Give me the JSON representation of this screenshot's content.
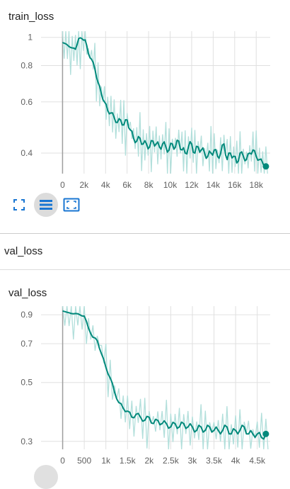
{
  "colors": {
    "line": "#00897b",
    "raw": "#b2dfdb",
    "grid": "#e0e0e0",
    "origin": "#9e9e9e",
    "icon": "#1976d2"
  },
  "train_card": {
    "title": "train_loss"
  },
  "toolbar": {
    "icons": [
      "fit-domain-icon",
      "toggle-log-scale-icon",
      "expand-icon"
    ]
  },
  "val_section": {
    "label": "val_loss"
  },
  "val_card": {
    "title": "val_loss"
  },
  "chart_data": [
    {
      "type": "line",
      "title": "train_loss",
      "xlim": [
        -2000,
        19300
      ],
      "ylim": [
        0.34,
        1.05
      ],
      "scale_y": "log",
      "y_ticks": [
        {
          "v": 1,
          "label": "1"
        },
        {
          "v": 0.8,
          "label": "0.8"
        },
        {
          "v": 0.6,
          "label": "0.6"
        },
        {
          "v": 0.4,
          "label": "0.4"
        }
      ],
      "x_ticks": [
        {
          "v": 0,
          "label": "0"
        },
        {
          "v": 2000,
          "label": "2k"
        },
        {
          "v": 4000,
          "label": "4k"
        },
        {
          "v": 6000,
          "label": "6k"
        },
        {
          "v": 8000,
          "label": "8k"
        },
        {
          "v": 10000,
          "label": "10k"
        },
        {
          "v": 12000,
          "label": "12k"
        },
        {
          "v": 14000,
          "label": "14k"
        },
        {
          "v": 16000,
          "label": "16k"
        },
        {
          "v": 18000,
          "label": "18k"
        }
      ],
      "grid": true,
      "series": [
        {
          "x": [
            0,
            300,
            600,
            900,
            1200,
            1500,
            1800,
            2100,
            2400,
            2700,
            3000,
            3300,
            3600,
            3900,
            4200,
            4500,
            4800,
            5100,
            5400,
            5700,
            6000,
            6300,
            6600,
            6900,
            7200,
            7500,
            7800,
            8100,
            8400,
            8700,
            9000,
            9300,
            9600,
            9900,
            10200,
            10500,
            10800,
            11100,
            11400,
            11700,
            12000,
            12300,
            12600,
            12900,
            13200,
            13500,
            13800,
            14100,
            14400,
            14700,
            15000,
            15300,
            15600,
            15900,
            16200,
            16500,
            16800,
            17100,
            17400,
            17700,
            18000,
            18300,
            18600,
            18900
          ],
          "y": [
            0.96,
            0.95,
            0.93,
            0.92,
            0.91,
            0.99,
            0.99,
            0.98,
            0.88,
            0.84,
            0.78,
            0.7,
            0.64,
            0.6,
            0.56,
            0.55,
            0.53,
            0.51,
            0.52,
            0.5,
            0.52,
            0.48,
            0.45,
            0.44,
            0.45,
            0.43,
            0.43,
            0.42,
            0.44,
            0.43,
            0.42,
            0.43,
            0.42,
            0.41,
            0.43,
            0.42,
            0.44,
            0.41,
            0.4,
            0.42,
            0.43,
            0.4,
            0.42,
            0.41,
            0.4,
            0.39,
            0.4,
            0.41,
            0.39,
            0.4,
            0.43,
            0.38,
            0.4,
            0.39,
            0.37,
            0.4,
            0.39,
            0.38,
            0.4,
            0.41,
            0.39,
            0.38,
            0.37,
            0.36
          ]
        }
      ]
    },
    {
      "type": "line",
      "title": "val_loss",
      "xlim": [
        -500,
        4800
      ],
      "ylim": [
        0.28,
        0.97
      ],
      "scale_y": "log",
      "y_ticks": [
        {
          "v": 0.9,
          "label": "0.9"
        },
        {
          "v": 0.7,
          "label": "0.7"
        },
        {
          "v": 0.5,
          "label": "0.5"
        },
        {
          "v": 0.3,
          "label": "0.3"
        }
      ],
      "x_ticks": [
        {
          "v": 0,
          "label": "0"
        },
        {
          "v": 500,
          "label": "500"
        },
        {
          "v": 1000,
          "label": "1k"
        },
        {
          "v": 1500,
          "label": "1.5k"
        },
        {
          "v": 2000,
          "label": "2k"
        },
        {
          "v": 2500,
          "label": "2.5k"
        },
        {
          "v": 3000,
          "label": "3k"
        },
        {
          "v": 3500,
          "label": "3.5k"
        },
        {
          "v": 4000,
          "label": "4k"
        },
        {
          "v": 4500,
          "label": "4.5k"
        }
      ],
      "grid": true,
      "series": [
        {
          "x": [
            0,
            100,
            200,
            300,
            400,
            500,
            600,
            700,
            800,
            900,
            1000,
            1100,
            1200,
            1300,
            1400,
            1500,
            1600,
            1700,
            1800,
            1900,
            2000,
            2100,
            2200,
            2300,
            2400,
            2500,
            2600,
            2700,
            2800,
            2900,
            3000,
            3100,
            3200,
            3300,
            3400,
            3500,
            3600,
            3700,
            3800,
            3900,
            4000,
            4100,
            4200,
            4300,
            4400,
            4500,
            4600,
            4700
          ],
          "y": [
            0.93,
            0.92,
            0.91,
            0.91,
            0.9,
            0.89,
            0.8,
            0.74,
            0.72,
            0.64,
            0.57,
            0.52,
            0.46,
            0.42,
            0.4,
            0.39,
            0.37,
            0.38,
            0.37,
            0.36,
            0.37,
            0.35,
            0.36,
            0.35,
            0.35,
            0.34,
            0.35,
            0.34,
            0.35,
            0.34,
            0.34,
            0.33,
            0.34,
            0.33,
            0.34,
            0.33,
            0.33,
            0.33,
            0.34,
            0.32,
            0.33,
            0.33,
            0.34,
            0.32,
            0.32,
            0.32,
            0.31,
            0.32
          ]
        }
      ]
    }
  ]
}
